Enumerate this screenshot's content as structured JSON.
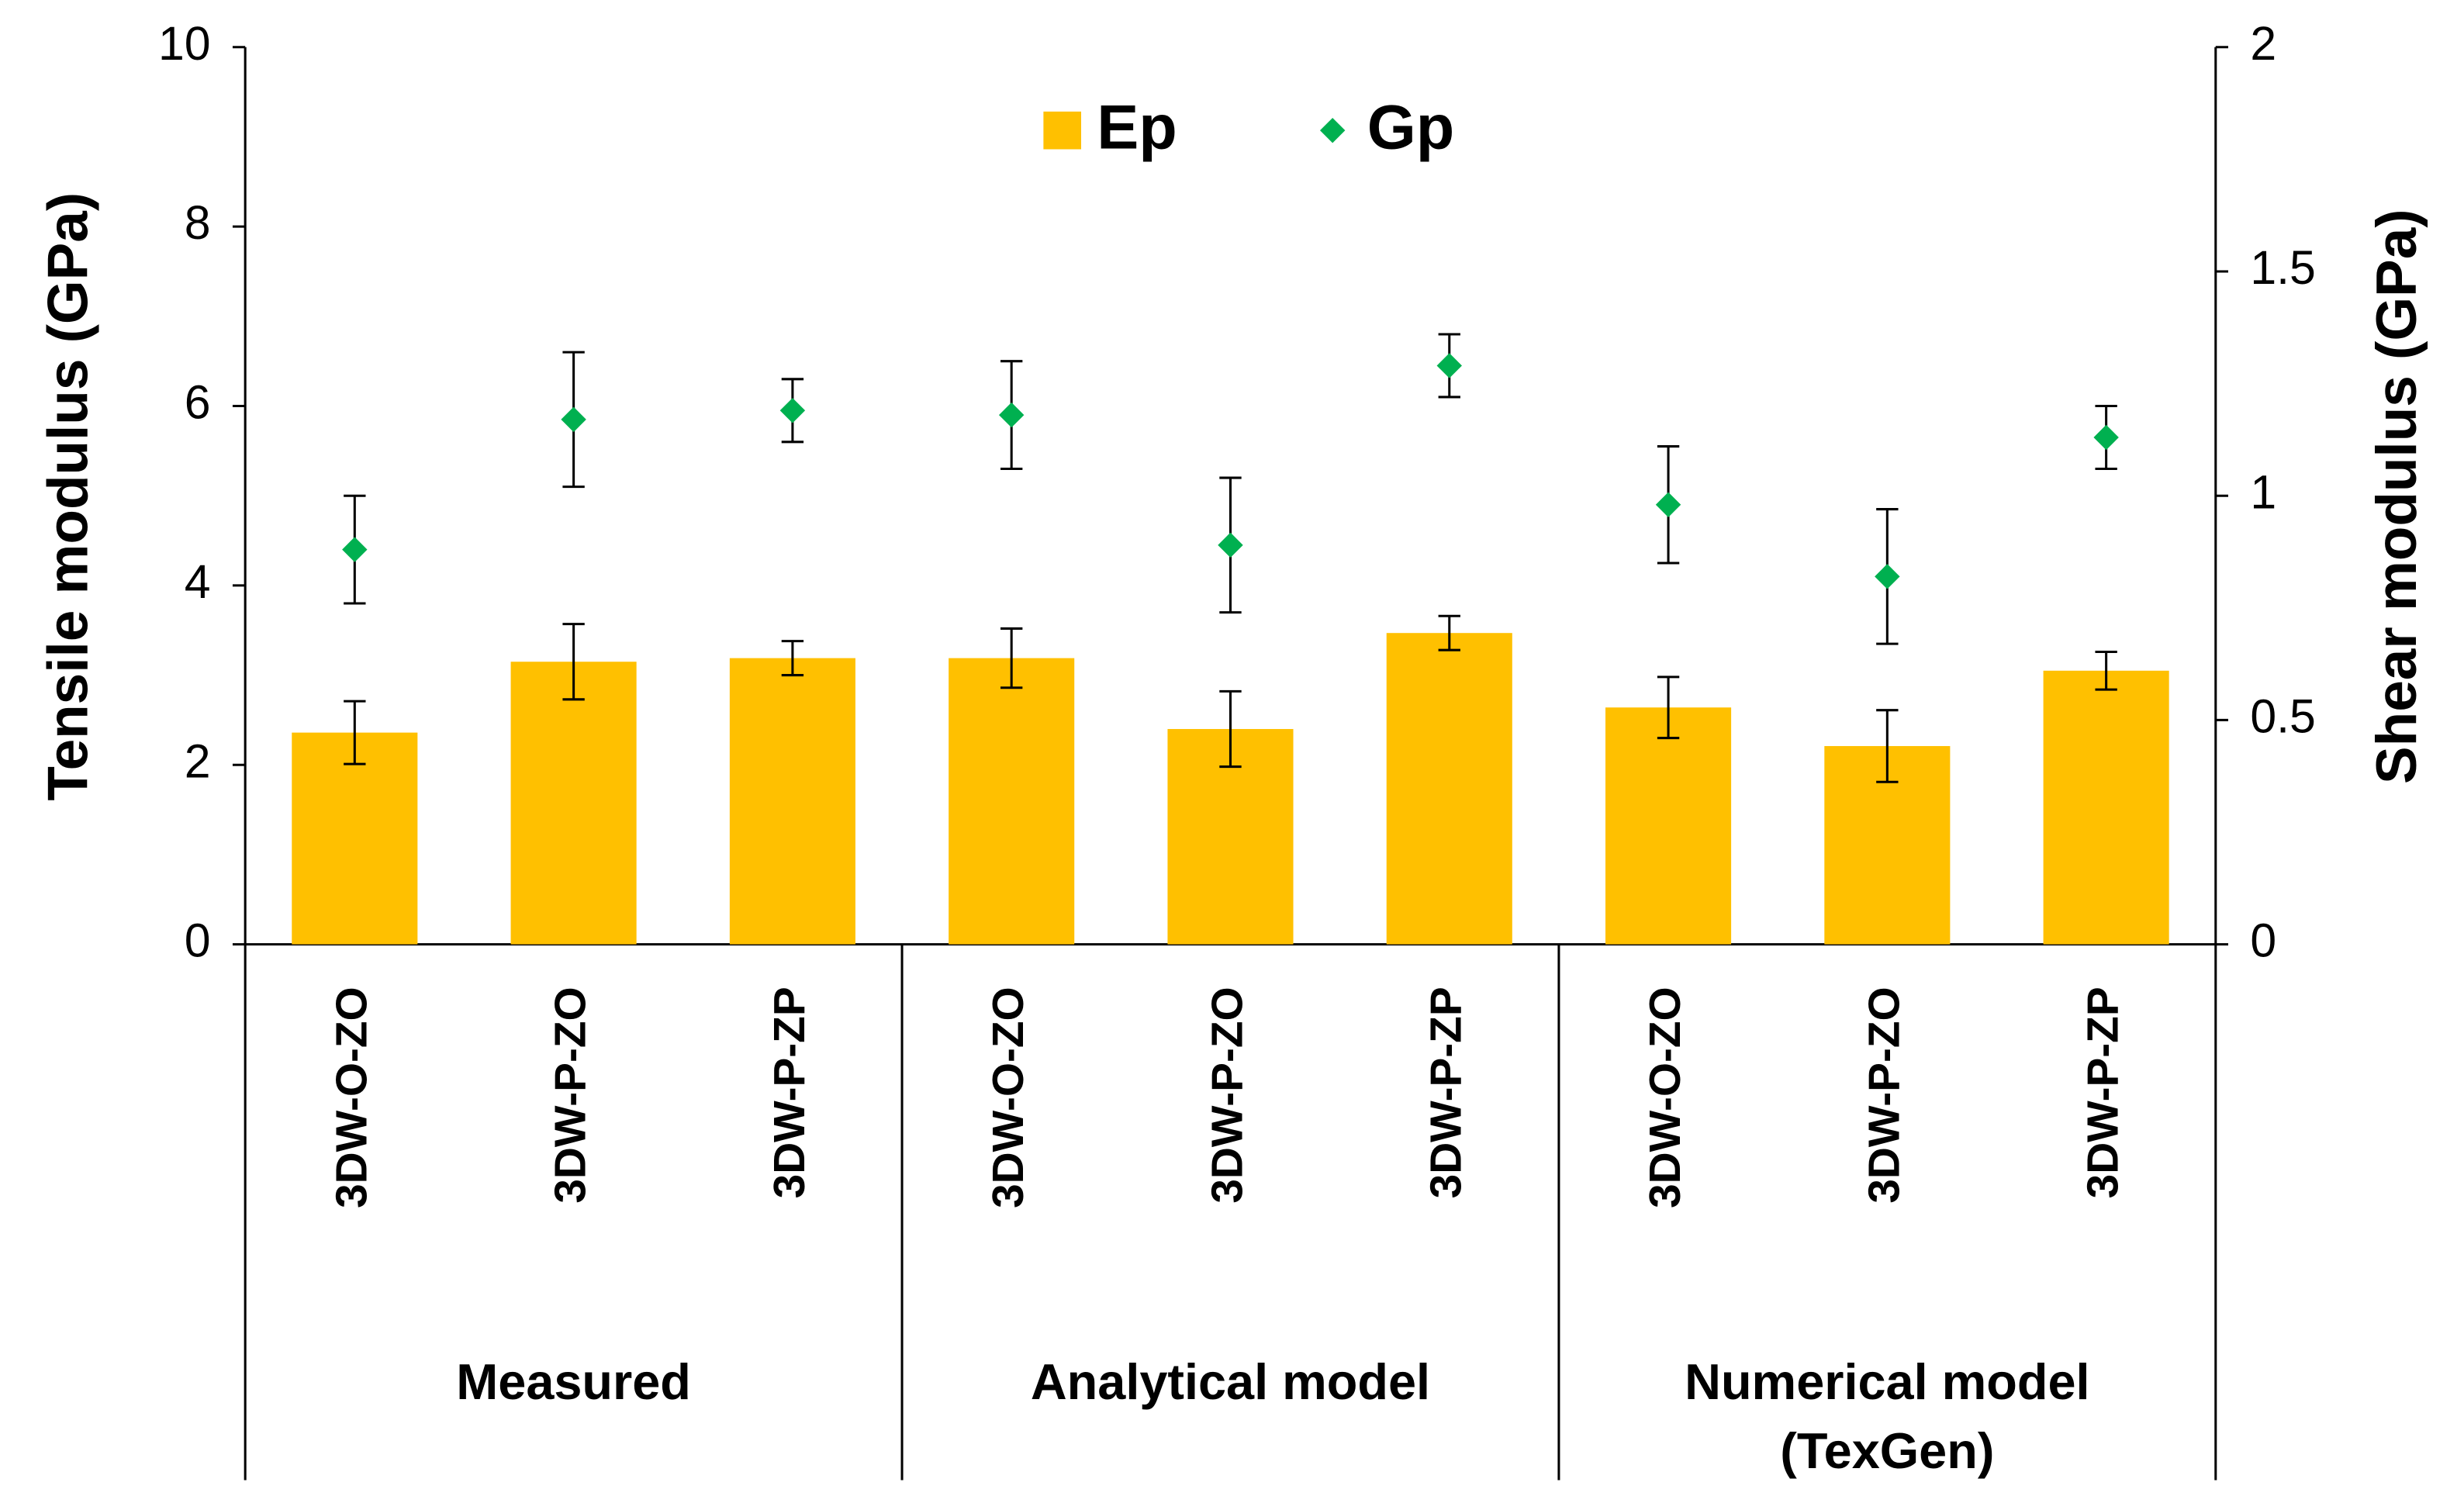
{
  "chart_data": {
    "type": "bar",
    "ylabel": "Tensile modulus (GPa)",
    "y2label": "Shear modulus (GPa)",
    "ylim": [
      0,
      10
    ],
    "yticks": [
      0,
      2,
      4,
      6,
      8,
      10
    ],
    "y2lim": [
      0,
      2
    ],
    "y2ticks": [
      0,
      0.5,
      1,
      1.5,
      2
    ],
    "categories": [
      "3DW-O-ZO",
      "3DW-P-ZO",
      "3DW-P-ZP",
      "3DW-O-ZO",
      "3DW-P-ZO",
      "3DW-P-ZP",
      "3DW-O-ZO",
      "3DW-P-ZO",
      "3DW-P-ZP"
    ],
    "groups": [
      {
        "name": [
          "Measured"
        ],
        "size": 3
      },
      {
        "name": [
          "Analytical model"
        ],
        "size": 3
      },
      {
        "name": [
          "Numerical model",
          "(TexGen)"
        ],
        "size": 3
      }
    ],
    "series": [
      {
        "name": "Ep",
        "type": "bar",
        "color": "#ffc000",
        "values": [
          2.36,
          3.15,
          3.19,
          3.19,
          2.4,
          3.47,
          2.64,
          2.21,
          3.05
        ],
        "errors": [
          0.35,
          0.42,
          0.19,
          0.33,
          0.42,
          0.19,
          0.34,
          0.4,
          0.21
        ]
      },
      {
        "name": "Gp",
        "type": "scatter",
        "axis": "y2",
        "color": "#00b050",
        "values": [
          0.88,
          1.17,
          1.19,
          1.18,
          0.89,
          1.29,
          0.98,
          0.82,
          1.13
        ],
        "errors": [
          0.12,
          0.15,
          0.07,
          0.12,
          0.15,
          0.07,
          0.13,
          0.15,
          0.07
        ]
      }
    ],
    "legend": "top"
  }
}
